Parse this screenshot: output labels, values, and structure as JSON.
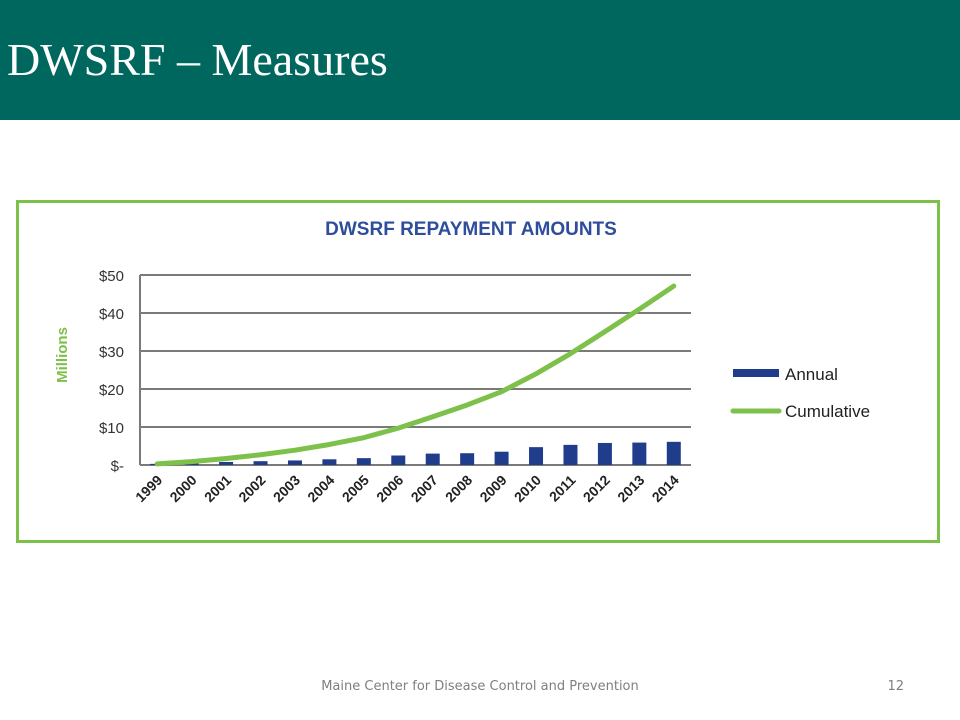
{
  "slide": {
    "title": "DWSRF – Measures",
    "footer": "Maine Center for Disease Control and Prevention",
    "page_number": "12"
  },
  "colors": {
    "header_band": "#00675f",
    "frame_border": "#7dc04a",
    "annual_bar": "#1f3d8a",
    "cumulative_line": "#7dc04a",
    "title_text": "#2e4d9b",
    "grid": "#7a7a7a"
  },
  "chart_data": {
    "type": "bar",
    "title": "DWSRF REPAYMENT AMOUNTS",
    "ylabel": "Millions",
    "xlabel": "",
    "categories": [
      "1999",
      "2000",
      "2001",
      "2002",
      "2003",
      "2004",
      "2005",
      "2006",
      "2007",
      "2008",
      "2009",
      "2010",
      "2011",
      "2012",
      "2013",
      "2014"
    ],
    "series": [
      {
        "name": "Annual",
        "type": "bar",
        "values": [
          0.3,
          0.6,
          0.8,
          1.0,
          1.2,
          1.5,
          1.8,
          2.5,
          3.0,
          3.1,
          3.5,
          4.7,
          5.3,
          5.8,
          5.9,
          6.1
        ]
      },
      {
        "name": "Cumulative",
        "type": "line",
        "values": [
          0.3,
          0.9,
          1.7,
          2.7,
          3.9,
          5.4,
          7.2,
          9.7,
          12.7,
          15.8,
          19.3,
          24.0,
          29.3,
          35.1,
          41.0,
          47.1
        ]
      }
    ],
    "ylim": [
      0,
      50
    ],
    "yticks": [
      0,
      10,
      20,
      30,
      40,
      50
    ],
    "ytick_labels": [
      "$-",
      "$10",
      "$20",
      "$30",
      "$40",
      "$50"
    ],
    "grid": true,
    "legend": "right"
  }
}
